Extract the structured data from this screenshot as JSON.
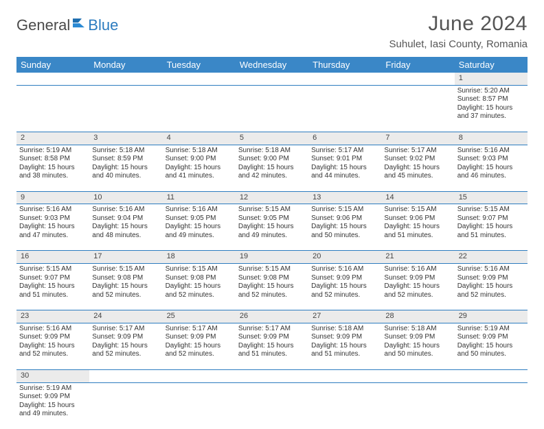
{
  "brand": {
    "word1": "General",
    "word2": "Blue"
  },
  "title": "June 2024",
  "location": "Suhulet, Iasi County, Romania",
  "colors": {
    "header_bg": "#3a87c7",
    "rule": "#2b7bbf",
    "daynum_bg": "#ebebeb",
    "text": "#333333",
    "title_text": "#555555"
  },
  "day_headers": [
    "Sunday",
    "Monday",
    "Tuesday",
    "Wednesday",
    "Thursday",
    "Friday",
    "Saturday"
  ],
  "weeks": [
    [
      null,
      null,
      null,
      null,
      null,
      null,
      {
        "n": "1",
        "sr": "5:20 AM",
        "ss": "8:57 PM",
        "dl": "15 hours and 37 minutes."
      }
    ],
    [
      {
        "n": "2",
        "sr": "5:19 AM",
        "ss": "8:58 PM",
        "dl": "15 hours and 38 minutes."
      },
      {
        "n": "3",
        "sr": "5:18 AM",
        "ss": "8:59 PM",
        "dl": "15 hours and 40 minutes."
      },
      {
        "n": "4",
        "sr": "5:18 AM",
        "ss": "9:00 PM",
        "dl": "15 hours and 41 minutes."
      },
      {
        "n": "5",
        "sr": "5:18 AM",
        "ss": "9:00 PM",
        "dl": "15 hours and 42 minutes."
      },
      {
        "n": "6",
        "sr": "5:17 AM",
        "ss": "9:01 PM",
        "dl": "15 hours and 44 minutes."
      },
      {
        "n": "7",
        "sr": "5:17 AM",
        "ss": "9:02 PM",
        "dl": "15 hours and 45 minutes."
      },
      {
        "n": "8",
        "sr": "5:16 AM",
        "ss": "9:03 PM",
        "dl": "15 hours and 46 minutes."
      }
    ],
    [
      {
        "n": "9",
        "sr": "5:16 AM",
        "ss": "9:03 PM",
        "dl": "15 hours and 47 minutes."
      },
      {
        "n": "10",
        "sr": "5:16 AM",
        "ss": "9:04 PM",
        "dl": "15 hours and 48 minutes."
      },
      {
        "n": "11",
        "sr": "5:16 AM",
        "ss": "9:05 PM",
        "dl": "15 hours and 49 minutes."
      },
      {
        "n": "12",
        "sr": "5:15 AM",
        "ss": "9:05 PM",
        "dl": "15 hours and 49 minutes."
      },
      {
        "n": "13",
        "sr": "5:15 AM",
        "ss": "9:06 PM",
        "dl": "15 hours and 50 minutes."
      },
      {
        "n": "14",
        "sr": "5:15 AM",
        "ss": "9:06 PM",
        "dl": "15 hours and 51 minutes."
      },
      {
        "n": "15",
        "sr": "5:15 AM",
        "ss": "9:07 PM",
        "dl": "15 hours and 51 minutes."
      }
    ],
    [
      {
        "n": "16",
        "sr": "5:15 AM",
        "ss": "9:07 PM",
        "dl": "15 hours and 51 minutes."
      },
      {
        "n": "17",
        "sr": "5:15 AM",
        "ss": "9:08 PM",
        "dl": "15 hours and 52 minutes."
      },
      {
        "n": "18",
        "sr": "5:15 AM",
        "ss": "9:08 PM",
        "dl": "15 hours and 52 minutes."
      },
      {
        "n": "19",
        "sr": "5:15 AM",
        "ss": "9:08 PM",
        "dl": "15 hours and 52 minutes."
      },
      {
        "n": "20",
        "sr": "5:16 AM",
        "ss": "9:09 PM",
        "dl": "15 hours and 52 minutes."
      },
      {
        "n": "21",
        "sr": "5:16 AM",
        "ss": "9:09 PM",
        "dl": "15 hours and 52 minutes."
      },
      {
        "n": "22",
        "sr": "5:16 AM",
        "ss": "9:09 PM",
        "dl": "15 hours and 52 minutes."
      }
    ],
    [
      {
        "n": "23",
        "sr": "5:16 AM",
        "ss": "9:09 PM",
        "dl": "15 hours and 52 minutes."
      },
      {
        "n": "24",
        "sr": "5:17 AM",
        "ss": "9:09 PM",
        "dl": "15 hours and 52 minutes."
      },
      {
        "n": "25",
        "sr": "5:17 AM",
        "ss": "9:09 PM",
        "dl": "15 hours and 52 minutes."
      },
      {
        "n": "26",
        "sr": "5:17 AM",
        "ss": "9:09 PM",
        "dl": "15 hours and 51 minutes."
      },
      {
        "n": "27",
        "sr": "5:18 AM",
        "ss": "9:09 PM",
        "dl": "15 hours and 51 minutes."
      },
      {
        "n": "28",
        "sr": "5:18 AM",
        "ss": "9:09 PM",
        "dl": "15 hours and 50 minutes."
      },
      {
        "n": "29",
        "sr": "5:19 AM",
        "ss": "9:09 PM",
        "dl": "15 hours and 50 minutes."
      }
    ],
    [
      {
        "n": "30",
        "sr": "5:19 AM",
        "ss": "9:09 PM",
        "dl": "15 hours and 49 minutes."
      },
      null,
      null,
      null,
      null,
      null,
      null
    ]
  ],
  "labels": {
    "sunrise": "Sunrise:",
    "sunset": "Sunset:",
    "daylight": "Daylight:"
  }
}
